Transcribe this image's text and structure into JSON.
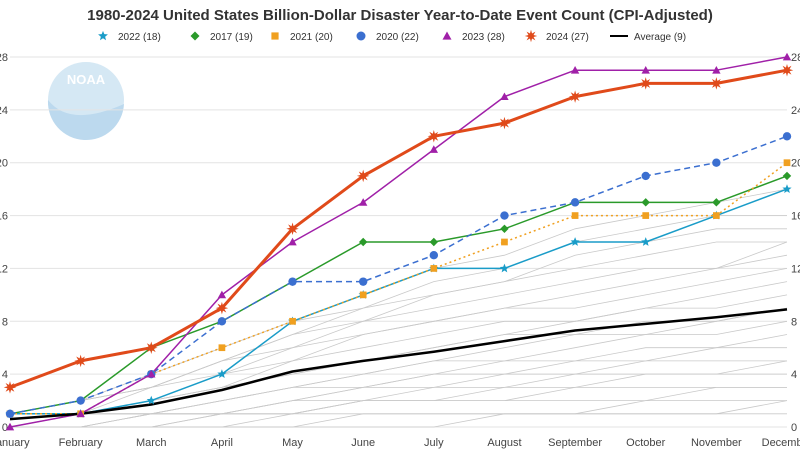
{
  "chart_data": {
    "type": "line",
    "title": "1980-2024 United States Billion-Dollar Disaster Year-to-Date Event Count (CPI-Adjusted)",
    "categories": [
      "January",
      "February",
      "March",
      "April",
      "May",
      "June",
      "July",
      "August",
      "September",
      "October",
      "November",
      "December"
    ],
    "x_tick_labels": [
      "January",
      "February",
      "March",
      "April",
      "May",
      "June",
      "July",
      "August",
      "September",
      "October",
      "November",
      "December"
    ],
    "y_ticks": [
      0,
      4,
      8,
      12,
      16,
      20,
      24,
      28
    ],
    "ylim": [
      0,
      28
    ],
    "xlabel": "",
    "ylabel": "",
    "grid": true,
    "legend_position": "top",
    "logo_text": "NOAA",
    "series": [
      {
        "name": "2022 (18)",
        "key": "s2022",
        "color": "#1a9cc8",
        "marker": "star",
        "dash": "solid",
        "width": 1.5,
        "values": [
          1,
          1,
          2,
          4,
          8,
          10,
          12,
          12,
          14,
          14,
          16,
          18
        ]
      },
      {
        "name": "2017 (19)",
        "key": "s2017",
        "color": "#2a9a2a",
        "marker": "diamond",
        "dash": "solid",
        "width": 1.5,
        "values": [
          1,
          2,
          6,
          8,
          11,
          14,
          14,
          15,
          17,
          17,
          17,
          19
        ]
      },
      {
        "name": "2021 (20)",
        "key": "s2021",
        "color": "#f0a020",
        "marker": "square",
        "dash": "dotted",
        "width": 1.5,
        "values": [
          1,
          1,
          4,
          6,
          8,
          10,
          12,
          14,
          16,
          16,
          16,
          20
        ]
      },
      {
        "name": "2020 (22)",
        "key": "s2020",
        "color": "#3b6fd0",
        "marker": "circle",
        "dash": "dashed",
        "width": 1.5,
        "values": [
          1,
          2,
          4,
          8,
          11,
          11,
          13,
          16,
          17,
          19,
          20,
          22
        ]
      },
      {
        "name": "2023 (28)",
        "key": "s2023",
        "color": "#a020a8",
        "marker": "triangle",
        "dash": "solid",
        "width": 1.5,
        "values": [
          0,
          1,
          4,
          10,
          14,
          17,
          21,
          25,
          27,
          27,
          27,
          28
        ]
      },
      {
        "name": "2024 (27)",
        "key": "s2024",
        "color": "#e04a1a",
        "marker": "burst",
        "dash": "solid",
        "width": 3,
        "values": [
          3,
          5,
          6,
          9,
          15,
          19,
          22,
          23,
          25,
          26,
          26,
          27
        ]
      },
      {
        "name": "Average (9)",
        "key": "avg",
        "color": "#000000",
        "marker": "none",
        "dash": "solid",
        "width": 2.5,
        "values": [
          0.6,
          1.0,
          1.7,
          2.8,
          4.2,
          5.0,
          5.7,
          6.5,
          7.3,
          7.8,
          8.3,
          8.9
        ]
      }
    ],
    "background_years": [
      [
        0,
        0,
        0,
        0,
        0,
        0,
        0,
        1,
        1,
        1,
        1,
        1
      ],
      [
        0,
        0,
        0,
        0,
        1,
        1,
        1,
        1,
        1,
        1,
        1,
        2
      ],
      [
        0,
        0,
        0,
        0,
        0,
        1,
        1,
        1,
        1,
        2,
        2,
        2
      ],
      [
        0,
        0,
        0,
        1,
        1,
        2,
        2,
        2,
        2,
        2,
        3,
        3
      ],
      [
        0,
        0,
        1,
        1,
        1,
        2,
        2,
        2,
        3,
        3,
        3,
        3
      ],
      [
        0,
        0,
        0,
        1,
        1,
        2,
        2,
        3,
        3,
        4,
        4,
        4
      ],
      [
        0,
        0,
        1,
        1,
        2,
        2,
        3,
        3,
        4,
        4,
        4,
        5
      ],
      [
        0,
        0,
        1,
        1,
        2,
        3,
        3,
        4,
        4,
        5,
        5,
        5
      ],
      [
        0,
        1,
        1,
        1,
        2,
        3,
        4,
        4,
        5,
        5,
        6,
        6
      ],
      [
        0,
        1,
        1,
        2,
        3,
        3,
        4,
        5,
        5,
        6,
        6,
        7
      ],
      [
        0,
        1,
        1,
        2,
        3,
        4,
        5,
        5,
        6,
        7,
        7,
        8
      ],
      [
        1,
        1,
        1,
        2,
        3,
        4,
        5,
        6,
        7,
        7,
        8,
        9
      ],
      [
        0,
        1,
        2,
        3,
        4,
        5,
        6,
        7,
        7,
        8,
        8,
        9
      ],
      [
        0,
        1,
        2,
        3,
        4,
        5,
        6,
        7,
        8,
        9,
        9,
        10
      ],
      [
        1,
        1,
        2,
        3,
        5,
        6,
        7,
        8,
        8,
        9,
        10,
        11
      ],
      [
        0,
        1,
        2,
        4,
        5,
        7,
        8,
        9,
        9,
        10,
        11,
        12
      ],
      [
        1,
        2,
        3,
        4,
        6,
        7,
        8,
        9,
        10,
        11,
        12,
        13
      ],
      [
        1,
        2,
        3,
        5,
        6,
        8,
        9,
        10,
        11,
        12,
        12,
        14
      ],
      [
        0,
        1,
        3,
        5,
        7,
        8,
        10,
        11,
        12,
        13,
        14,
        14
      ],
      [
        1,
        2,
        3,
        5,
        7,
        9,
        10,
        11,
        13,
        14,
        15,
        15
      ],
      [
        1,
        2,
        4,
        6,
        8,
        9,
        11,
        12,
        14,
        15,
        16,
        16
      ],
      [
        1,
        2,
        4,
        6,
        8,
        10,
        12,
        13,
        15,
        16,
        17,
        18
      ]
    ]
  }
}
